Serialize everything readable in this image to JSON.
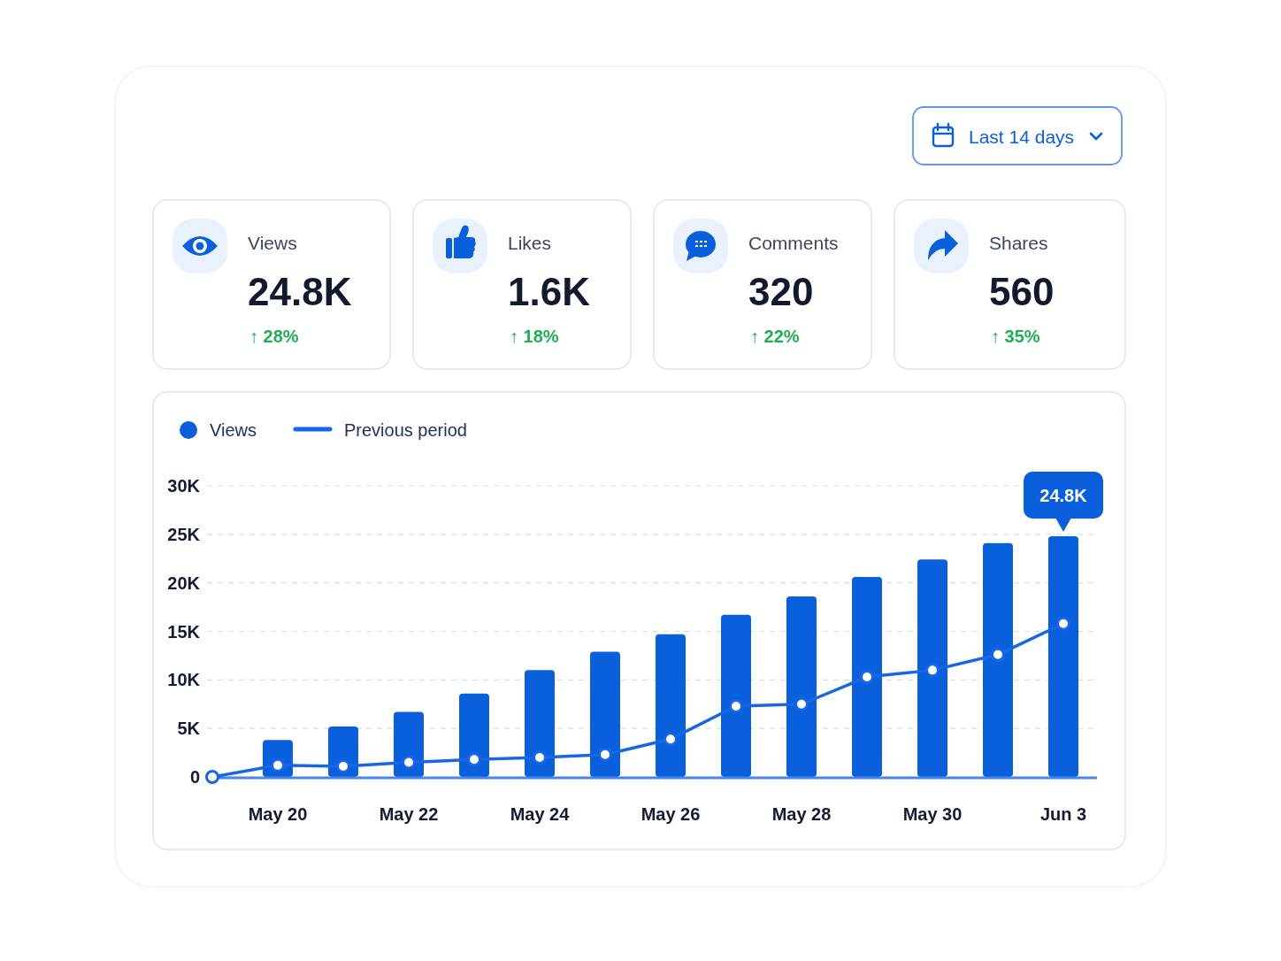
{
  "chart_data": [
    {
      "type": "other",
      "annotations": [
        "Last 14 days"
      ]
    },
    {
      "type": "other",
      "annotations": [
        "Views",
        "24.8K",
        "↑ 28%",
        "Likes",
        "1.6K",
        "↑ 18%",
        "Comments",
        "320",
        "↑ 22%",
        "Shares",
        "560",
        "↑ 35%"
      ]
    },
    {
      "type": "bar",
      "categories": [
        null,
        "May 20",
        null,
        "May 22",
        null,
        "May 24",
        null,
        "May 26",
        null,
        "May 28",
        null,
        "May 30",
        null,
        "Jun 3"
      ],
      "series": [
        {
          "name": "Views",
          "type": "bar",
          "color": "#0a5fdc",
          "values": [
            null,
            3800,
            5200,
            6700,
            8600,
            11000,
            12900,
            14700,
            16700,
            18600,
            20600,
            22400,
            24100,
            24800
          ],
          "value_labels": [
            null,
            null,
            null,
            null,
            null,
            null,
            null,
            null,
            null,
            null,
            null,
            null,
            null,
            "24.8K"
          ]
        },
        {
          "name": "Previous period",
          "type": "line",
          "color": "#1766e6",
          "marker": "circle",
          "values": [
            0,
            1200,
            1100,
            1500,
            1800,
            2000,
            2300,
            3900,
            7300,
            7500,
            10300,
            11000,
            12600,
            15800
          ]
        }
      ],
      "ylim": [
        0,
        30000
      ],
      "yticks": [
        0,
        {
          "value": 5000,
          "label": "5K"
        },
        {
          "value": 10000,
          "label": "10K"
        },
        {
          "value": 15000,
          "label": "15K"
        },
        {
          "value": 20000,
          "label": "20K"
        },
        {
          "value": 25000,
          "label": "25K"
        },
        {
          "value": 30000,
          "label": "30K"
        }
      ],
      "grid": "y",
      "legend": "top left"
    }
  ]
}
